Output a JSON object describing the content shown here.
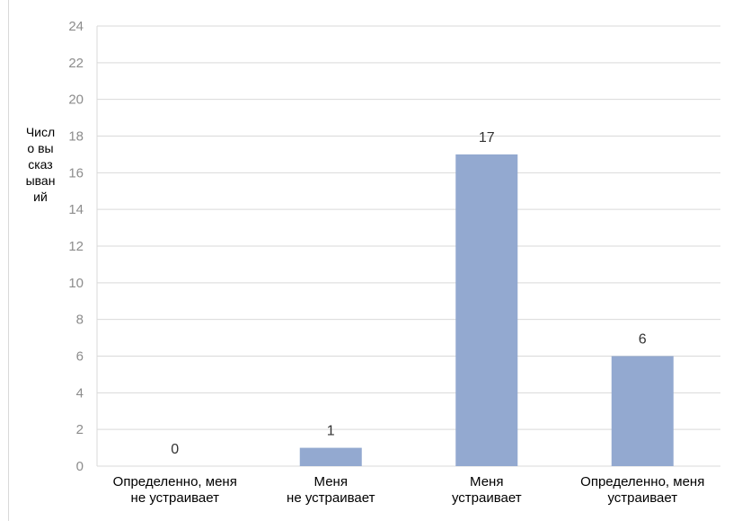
{
  "chart_data": {
    "type": "bar",
    "categories": [
      [
        "Определенно, меня",
        "не устраивает"
      ],
      [
        "Меня",
        "не устраивает"
      ],
      [
        "Меня",
        "устраивает"
      ],
      [
        "Определенно, меня",
        "устраивает"
      ]
    ],
    "values": [
      0,
      1,
      17,
      6
    ],
    "data_labels": [
      "0",
      "1",
      "17",
      "6"
    ],
    "ylabel": "Число высказываний",
    "xlabel": "",
    "ylim": [
      0,
      24
    ],
    "yticks": [
      0,
      2,
      4,
      6,
      8,
      10,
      12,
      14,
      16,
      18,
      20,
      22,
      24
    ],
    "grid": true,
    "colors": {
      "bar": "#93a9d0",
      "grid": "#d9d9d9",
      "tick_text": "#8c8c8c"
    }
  }
}
